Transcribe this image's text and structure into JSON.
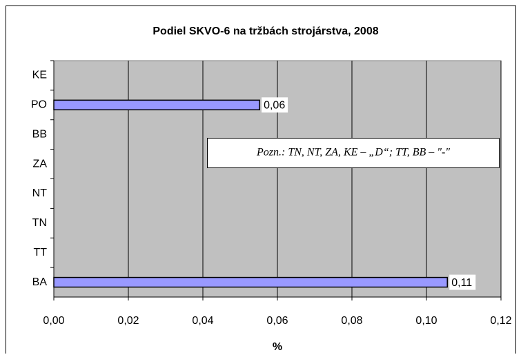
{
  "chart_data": {
    "type": "hbar",
    "title": "Podiel SKVO-6 na tržbách strojárstva, 2008",
    "categories": [
      "KE",
      "PO",
      "BB",
      "ZA",
      "NT",
      "TN",
      "TT",
      "BA"
    ],
    "values": [
      null,
      0.0552,
      null,
      null,
      null,
      null,
      null,
      0.1056
    ],
    "value_labels": [
      null,
      "0,06",
      null,
      null,
      null,
      null,
      null,
      "0,11"
    ],
    "color": "#9999ff",
    "xlim": [
      0,
      0.12
    ],
    "xticks": [
      {
        "value": 0,
        "label": "0,00"
      },
      {
        "value": 0.02,
        "label": "0,02"
      },
      {
        "value": 0.04,
        "label": "0,04"
      },
      {
        "value": 0.06,
        "label": "0,06"
      },
      {
        "value": 0.08,
        "label": "0,08"
      },
      {
        "value": 0.1,
        "label": "0,10"
      },
      {
        "value": 0.12,
        "label": "0,12"
      }
    ],
    "xlabel": "%",
    "annotation": "Pozn.: TN, NT, ZA, KE – „D“; TT, BB – \"-\"",
    "grid": true
  }
}
